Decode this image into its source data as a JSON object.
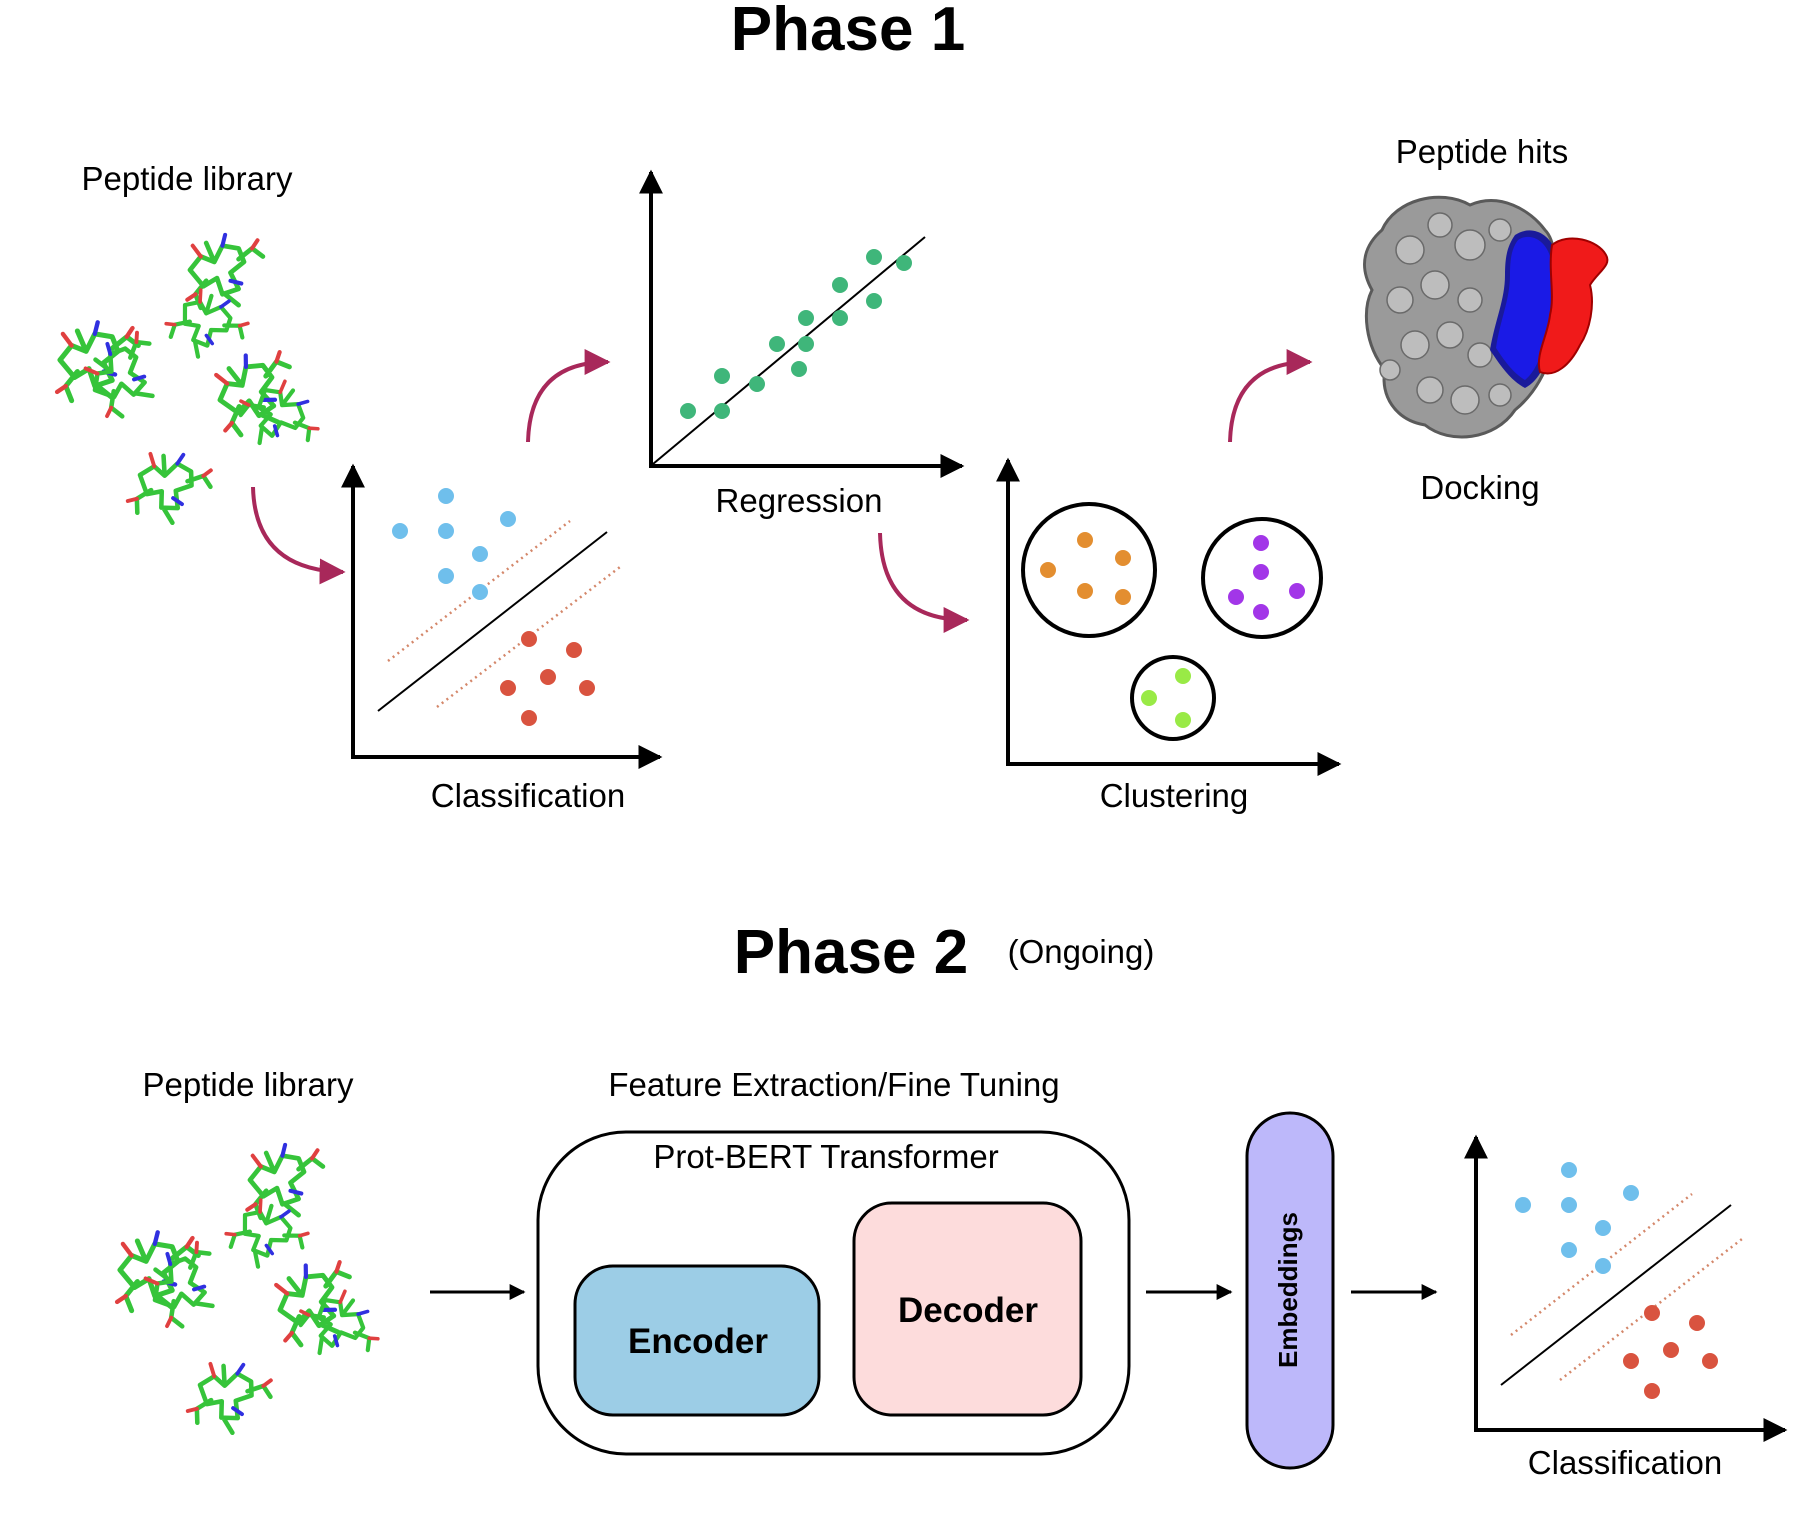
{
  "phase1": {
    "title": "Phase 1",
    "peptide_library_label": "Peptide library",
    "classification_label": "Classification",
    "regression_label": "Regression",
    "clustering_label": "Clustering",
    "peptide_hits_label": "Peptide hits",
    "docking_label": "Docking"
  },
  "phase2": {
    "title": "Phase 2",
    "status": "(Ongoing)",
    "peptide_library_label": "Peptide library",
    "feature_label": "Feature Extraction/Fine Tuning",
    "transformer_label": "Prot-BERT Transformer",
    "encoder_label": "Encoder",
    "decoder_label": "Decoder",
    "embeddings_label": "Embeddings",
    "classification_label": "Classification"
  },
  "colors": {
    "arrow_curve": "#a8285a",
    "class_blue": "#6fbfec",
    "class_red": "#d9533f",
    "margin_dotted": "#d4876a",
    "regression_green": "#3fb67a",
    "cluster_orange": "#e38e30",
    "cluster_purple": "#a236e8",
    "cluster_lime": "#99ea46",
    "encoder_fill": "#9ccde6",
    "decoder_fill": "#fddcdc",
    "embeddings_fill": "#bdb8fa",
    "peptide_green": "#36c43a",
    "protein_grey": "#9a9a9a",
    "protein_blue": "#1a1ae6",
    "protein_red": "#f01a1a"
  }
}
